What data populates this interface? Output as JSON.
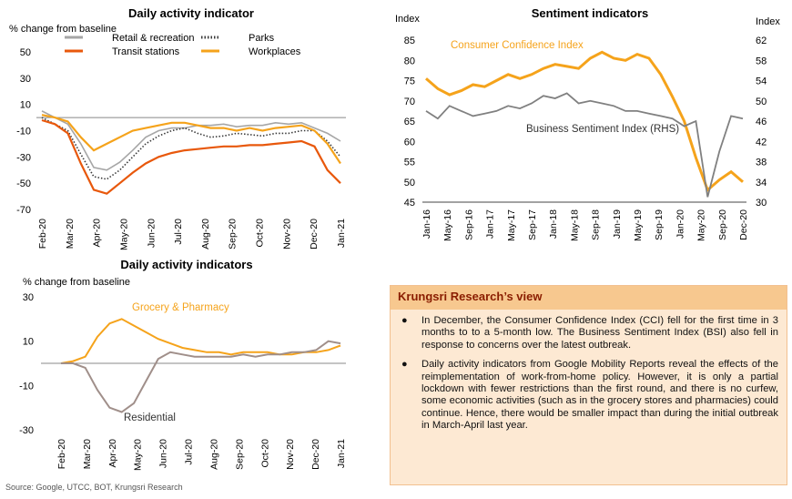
{
  "chart_data": [
    {
      "type": "line",
      "title": "Daily activity indicator",
      "ylabel": "% change from baseline",
      "xlabel": "",
      "ylim": [
        -70,
        50
      ],
      "yticks": [
        50,
        30,
        10,
        -10,
        -30,
        -50,
        -70
      ],
      "x_tick_labels": [
        "Feb-20",
        "Mar-20",
        "Apr-20",
        "May-20",
        "Jun-20",
        "Jul-20",
        "Aug-20",
        "Sep-20",
        "Oct-20",
        "Nov-20",
        "Dec-20",
        "Jan-21"
      ],
      "legend": "top",
      "legend_labels": [
        "Retail & recreation",
        "Parks",
        "Transit stations",
        "Workplaces"
      ],
      "series": [
        {
          "name": "Retail & recreation",
          "color": "#a6a6a6",
          "style": "solid",
          "values": [
            5,
            0,
            -5,
            -20,
            -38,
            -40,
            -34,
            -25,
            -15,
            -10,
            -8,
            -8,
            -6,
            -6,
            -5,
            -7,
            -6,
            -6,
            -4,
            -5,
            -4,
            -8,
            -12,
            -18
          ]
        },
        {
          "name": "Parks",
          "color": "#3a3a3a",
          "style": "dotted",
          "values": [
            0,
            -5,
            -10,
            -28,
            -45,
            -47,
            -40,
            -30,
            -20,
            -14,
            -10,
            -8,
            -12,
            -15,
            -14,
            -12,
            -13,
            -14,
            -12,
            -12,
            -10,
            -10,
            -18,
            -30
          ]
        },
        {
          "name": "Transit stations",
          "color": "#e8580c",
          "style": "solid",
          "values": [
            -2,
            -5,
            -12,
            -35,
            -55,
            -58,
            -50,
            -42,
            -35,
            -30,
            -27,
            -25,
            -24,
            -23,
            -22,
            -22,
            -21,
            -21,
            -20,
            -19,
            -18,
            -22,
            -40,
            -50
          ]
        },
        {
          "name": "Workplaces",
          "color": "#f5a31b",
          "style": "solid",
          "values": [
            2,
            0,
            -3,
            -15,
            -25,
            -20,
            -15,
            -10,
            -8,
            -6,
            -4,
            -4,
            -6,
            -8,
            -8,
            -10,
            -8,
            -10,
            -8,
            -7,
            -6,
            -10,
            -20,
            -35
          ]
        }
      ]
    },
    {
      "type": "line",
      "title": "Sentiment indicators",
      "left_axis_label": "Index",
      "right_axis_label": "Index",
      "ylim_left": [
        45,
        85
      ],
      "ylim_right": [
        30,
        62
      ],
      "yticks_left": [
        85,
        80,
        75,
        70,
        65,
        60,
        55,
        50,
        45
      ],
      "yticks_right": [
        62,
        58,
        54,
        50,
        46,
        42,
        38,
        34,
        30
      ],
      "x_tick_labels": [
        "Jan-16",
        "May-16",
        "Sep-16",
        "Jan-17",
        "May-17",
        "Sep-17",
        "Jan-18",
        "May-18",
        "Sep-18",
        "Jan-19",
        "May-19",
        "Sep-19",
        "Jan-20",
        "May-20",
        "Sep-20",
        "Dec-20"
      ],
      "annotations": [
        "Consumer Confidence Index",
        "Business Sentiment Index (RHS)"
      ],
      "series": [
        {
          "name": "Consumer Confidence Index",
          "axis": "left",
          "color": "#f5a31b",
          "values": [
            75.5,
            73,
            71.5,
            72.5,
            74,
            73.5,
            75,
            76.5,
            75.5,
            76.5,
            78,
            79,
            78.5,
            78,
            80.5,
            82,
            80.5,
            80,
            81.5,
            80.5,
            76.5,
            71,
            65,
            56,
            48,
            50.5,
            52.5,
            50
          ]
        },
        {
          "name": "Business Sentiment Index (RHS)",
          "axis": "right",
          "color": "#808080",
          "values": [
            48,
            46.5,
            49,
            48,
            47,
            47.5,
            48,
            49,
            48.5,
            49.5,
            51,
            50.5,
            51.5,
            49.5,
            50,
            49.5,
            49,
            48,
            48,
            47.5,
            47,
            46.5,
            45,
            46,
            31,
            40,
            47,
            46.5
          ]
        }
      ]
    },
    {
      "type": "line",
      "title": "Daily activity indicators",
      "ylabel": "% change from baseline",
      "ylim": [
        -30,
        30
      ],
      "yticks": [
        30,
        10,
        -10,
        -30
      ],
      "x_tick_labels": [
        "Feb-20",
        "Mar-20",
        "Apr-20",
        "May-20",
        "Jun-20",
        "Jul-20",
        "Aug-20",
        "Sep-20",
        "Oct-20",
        "Nov-20",
        "Dec-20",
        "Jan-21"
      ],
      "annotations": [
        "Grocery & Pharmacy",
        "Residential"
      ],
      "series": [
        {
          "name": "Grocery & Pharmacy",
          "color": "#f5a31b",
          "values": [
            0,
            1,
            3,
            12,
            18,
            20,
            17,
            14,
            11,
            9,
            7,
            6,
            5,
            5,
            4,
            5,
            5,
            5,
            4,
            4,
            5,
            5,
            6,
            8
          ]
        },
        {
          "name": "Residential",
          "color": "#a08f8a",
          "values": [
            0,
            0,
            -2,
            -12,
            -20,
            -22,
            -18,
            -8,
            2,
            5,
            4,
            3,
            3,
            3,
            3,
            4,
            3,
            4,
            4,
            5,
            5,
            6,
            10,
            9
          ]
        }
      ]
    }
  ],
  "view": {
    "title": "Krungsri Research’s view",
    "bullet": "●",
    "points": [
      "In December, the Consumer Confidence Index (CCI) fell for the first time in 3 months to to a 5-month low. The Business Sentiment Index (BSI) also fell in response to concerns over the latest outbreak.",
      "Daily activity indicators from Google Mobility Reports reveal the effects of the reimplementation of work-from-home policy. However, it is only a partial lockdown with fewer restrictions than the first round, and there is no curfew, some economic activities (such as in the grocery stores and pharmacies) could continue. Hence, there would be smaller impact than during the initial outbreak in March-April last year."
    ]
  },
  "source": "Source: Google, UTCC, BOT, Krungsri Research"
}
